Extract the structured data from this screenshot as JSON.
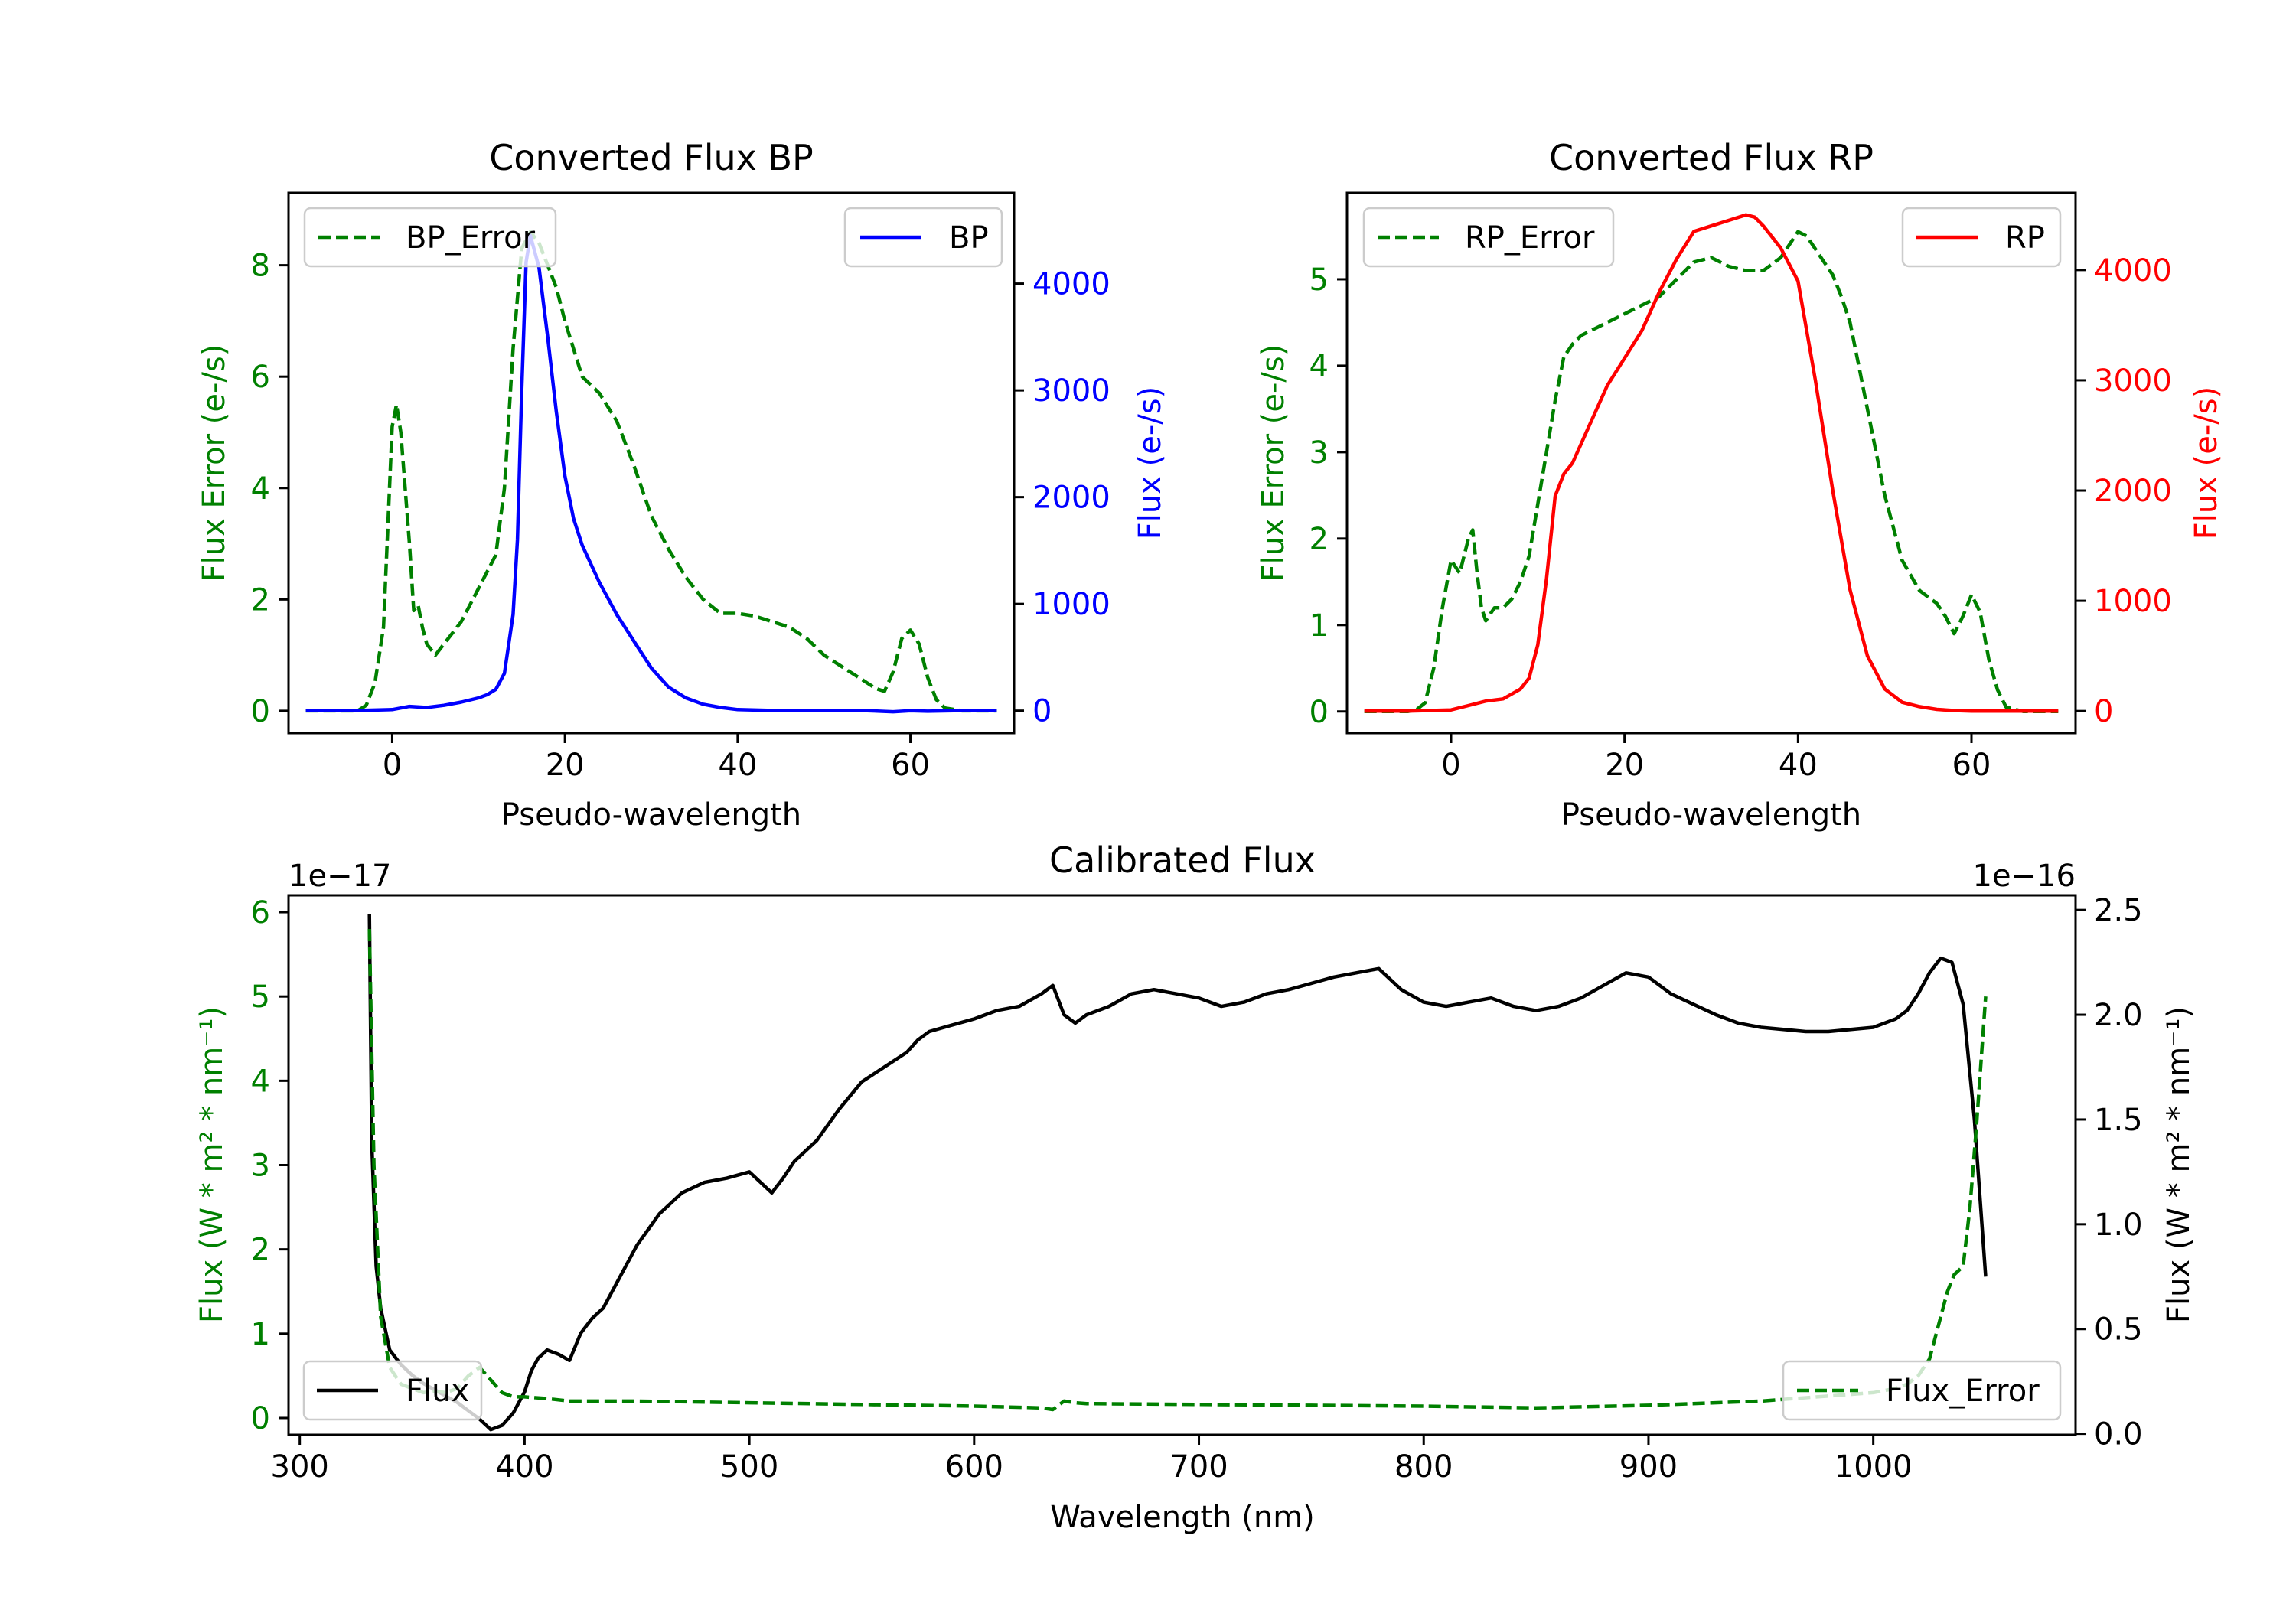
{
  "colors": {
    "green": "#008000",
    "blue": "#0000ff",
    "red": "#ff0000",
    "black": "#000000"
  },
  "chart_data": [
    {
      "type": "line",
      "title": "Converted Flux BP",
      "xlabel": "Pseudo-wavelength",
      "ylabel_left": "Flux Error (e-/s)",
      "ylabel_right": "Flux (e-/s)",
      "xlim": [
        -12,
        72
      ],
      "ylim_left": [
        -0.4,
        9.3
      ],
      "ylim_right": [
        -210,
        4850
      ],
      "xticks": [
        "0",
        "20",
        "40",
        "60"
      ],
      "yticks_left": [
        "0",
        "2",
        "4",
        "6",
        "8"
      ],
      "yticks_right": [
        "0",
        "1000",
        "2000",
        "3000",
        "4000"
      ],
      "legend_left": "BP_Error",
      "legend_right": "BP",
      "series": [
        {
          "name": "BP_Error",
          "axis": "left",
          "style": "dashed",
          "color": "green",
          "x": [
            -10,
            -4,
            -3,
            -2,
            -1,
            0,
            0.5,
            1,
            2,
            2.5,
            3,
            3.5,
            4,
            5,
            6,
            7,
            8,
            9,
            10,
            12,
            13,
            14,
            15,
            16,
            17,
            18,
            19,
            20,
            22,
            24,
            26,
            28,
            30,
            32,
            34,
            36,
            38,
            40,
            42,
            44,
            46,
            48,
            50,
            52,
            54,
            56,
            57,
            58,
            59,
            60,
            61,
            62,
            63,
            64,
            66,
            68,
            70
          ],
          "y": [
            0,
            0,
            0.1,
            0.5,
            1.5,
            5.1,
            5.5,
            5.0,
            3.0,
            1.8,
            1.9,
            1.5,
            1.2,
            1.0,
            1.2,
            1.4,
            1.6,
            1.9,
            2.2,
            2.8,
            4.0,
            6.5,
            8.3,
            8.6,
            8.4,
            8.0,
            7.6,
            7.0,
            6.0,
            5.7,
            5.2,
            4.4,
            3.5,
            2.9,
            2.4,
            2.0,
            1.75,
            1.75,
            1.7,
            1.6,
            1.5,
            1.3,
            1.0,
            0.8,
            0.6,
            0.4,
            0.35,
            0.7,
            1.3,
            1.45,
            1.2,
            0.6,
            0.2,
            0.05,
            0,
            0,
            0
          ]
        },
        {
          "name": "BP",
          "axis": "right",
          "style": "solid",
          "color": "blue",
          "x": [
            -10,
            -5,
            0,
            2,
            4,
            6,
            8,
            10,
            11,
            12,
            13,
            14,
            14.5,
            15,
            15.5,
            16,
            17,
            18,
            19,
            20,
            21,
            22,
            24,
            26,
            28,
            30,
            32,
            34,
            36,
            38,
            40,
            45,
            50,
            55,
            58,
            60,
            62,
            65,
            70
          ],
          "y": [
            0,
            0,
            10,
            40,
            30,
            50,
            80,
            120,
            150,
            200,
            350,
            900,
            1600,
            3000,
            4200,
            4450,
            4150,
            3500,
            2800,
            2200,
            1800,
            1550,
            1200,
            900,
            650,
            400,
            220,
            120,
            60,
            30,
            10,
            0,
            0,
            0,
            -10,
            0,
            -5,
            0,
            0
          ]
        }
      ]
    },
    {
      "type": "line",
      "title": "Converted Flux RP",
      "xlabel": "Pseudo-wavelength",
      "ylabel_left": "Flux Error (e-/s)",
      "ylabel_right": "Flux (e-/s)",
      "xlim": [
        -12,
        72
      ],
      "ylim_left": [
        -0.25,
        6.0
      ],
      "ylim_right": [
        -200,
        4700
      ],
      "xticks": [
        "0",
        "20",
        "40",
        "60"
      ],
      "yticks_left": [
        "0",
        "1",
        "2",
        "3",
        "4",
        "5"
      ],
      "yticks_right": [
        "0",
        "1000",
        "2000",
        "3000",
        "4000"
      ],
      "legend_left": "RP_Error",
      "legend_right": "RP",
      "series": [
        {
          "name": "RP_Error",
          "axis": "left",
          "style": "dashed",
          "color": "green",
          "x": [
            -10,
            -5,
            -4,
            -3,
            -2,
            -1,
            0,
            1,
            2,
            2.5,
            3,
            3.5,
            4,
            5,
            6,
            7,
            8,
            9,
            10,
            11,
            12,
            13,
            14,
            15,
            16,
            18,
            20,
            22,
            24,
            26,
            28,
            30,
            32,
            34,
            36,
            38,
            39,
            40,
            41,
            42,
            43,
            44,
            45,
            46,
            47,
            48,
            50,
            52,
            54,
            56,
            57,
            58,
            59,
            60,
            61,
            62,
            63,
            64,
            66,
            68,
            70
          ],
          "y": [
            0,
            0,
            0.02,
            0.1,
            0.5,
            1.2,
            1.75,
            1.6,
            2.0,
            2.1,
            1.6,
            1.2,
            1.05,
            1.2,
            1.2,
            1.3,
            1.5,
            1.8,
            2.4,
            3.0,
            3.6,
            4.1,
            4.25,
            4.35,
            4.4,
            4.5,
            4.6,
            4.7,
            4.8,
            5.0,
            5.2,
            5.25,
            5.15,
            5.1,
            5.1,
            5.25,
            5.4,
            5.55,
            5.5,
            5.35,
            5.2,
            5.05,
            4.8,
            4.5,
            4.0,
            3.5,
            2.5,
            1.75,
            1.4,
            1.25,
            1.1,
            0.9,
            1.1,
            1.35,
            1.15,
            0.6,
            0.25,
            0.05,
            0,
            0,
            0
          ]
        },
        {
          "name": "RP",
          "axis": "right",
          "style": "solid",
          "color": "red",
          "x": [
            -10,
            -5,
            0,
            2,
            4,
            6,
            8,
            9,
            10,
            11,
            12,
            13,
            14,
            16,
            18,
            20,
            22,
            24,
            26,
            28,
            30,
            32,
            34,
            35,
            36,
            38,
            40,
            42,
            44,
            46,
            48,
            50,
            52,
            54,
            56,
            58,
            60,
            62,
            65,
            70
          ],
          "y": [
            0,
            0,
            10,
            50,
            90,
            110,
            200,
            300,
            600,
            1200,
            1950,
            2150,
            2250,
            2600,
            2950,
            3200,
            3450,
            3800,
            4100,
            4350,
            4400,
            4450,
            4500,
            4480,
            4400,
            4200,
            3900,
            3000,
            2000,
            1100,
            500,
            200,
            80,
            40,
            15,
            5,
            0,
            0,
            0,
            0
          ]
        }
      ]
    },
    {
      "type": "line",
      "title": "Calibrated Flux",
      "xlabel": "Wavelength (nm)",
      "ylabel_left": "Flux (W * m² * nm⁻¹)",
      "ylabel_right": "Flux (W * m² * nm⁻¹)",
      "offset_left": "1e−17",
      "offset_right": "1e−16",
      "xlim": [
        295,
        1090
      ],
      "ylim_left": [
        -0.2,
        6.2
      ],
      "ylim_right": [
        -0.005,
        2.57
      ],
      "xticks": [
        "300",
        "400",
        "500",
        "600",
        "700",
        "800",
        "900",
        "1000"
      ],
      "yticks_left": [
        "0",
        "1",
        "2",
        "3",
        "4",
        "5",
        "6"
      ],
      "yticks_right": [
        "0.0",
        "0.5",
        "1.0",
        "1.5",
        "2.0",
        "2.5"
      ],
      "legend_left": "Flux",
      "legend_right": "Flux_Error",
      "series": [
        {
          "name": "Flux",
          "axis": "right",
          "style": "solid",
          "color": "black",
          "x": [
            331,
            332,
            334,
            336,
            338,
            340,
            345,
            350,
            355,
            360,
            365,
            370,
            375,
            380,
            385,
            390,
            395,
            400,
            403,
            406,
            410,
            415,
            420,
            425,
            430,
            435,
            440,
            445,
            450,
            460,
            465,
            470,
            480,
            490,
            500,
            507,
            510,
            515,
            520,
            530,
            540,
            550,
            560,
            570,
            575,
            580,
            590,
            600,
            610,
            620,
            630,
            635,
            640,
            645,
            650,
            660,
            670,
            680,
            690,
            700,
            710,
            720,
            730,
            740,
            750,
            760,
            770,
            780,
            790,
            800,
            810,
            820,
            830,
            840,
            850,
            860,
            870,
            880,
            890,
            900,
            910,
            920,
            930,
            940,
            950,
            960,
            970,
            980,
            990,
            1000,
            1005,
            1010,
            1015,
            1020,
            1025,
            1030,
            1035,
            1040,
            1045,
            1050
          ],
          "y": [
            2.48,
            1.4,
            0.8,
            0.6,
            0.5,
            0.4,
            0.33,
            0.28,
            0.24,
            0.21,
            0.18,
            0.15,
            0.11,
            0.07,
            0.02,
            0.04,
            0.1,
            0.2,
            0.3,
            0.36,
            0.4,
            0.38,
            0.35,
            0.48,
            0.55,
            0.6,
            0.7,
            0.8,
            0.9,
            1.05,
            1.1,
            1.15,
            1.2,
            1.22,
            1.25,
            1.18,
            1.15,
            1.22,
            1.3,
            1.4,
            1.55,
            1.68,
            1.75,
            1.82,
            1.88,
            1.92,
            1.95,
            1.98,
            2.02,
            2.04,
            2.1,
            2.14,
            2.0,
            1.96,
            2.0,
            2.04,
            2.1,
            2.12,
            2.1,
            2.08,
            2.04,
            2.06,
            2.1,
            2.12,
            2.15,
            2.18,
            2.2,
            2.22,
            2.12,
            2.06,
            2.04,
            2.06,
            2.08,
            2.04,
            2.02,
            2.04,
            2.08,
            2.14,
            2.2,
            2.18,
            2.1,
            2.05,
            2.0,
            1.96,
            1.94,
            1.93,
            1.92,
            1.92,
            1.93,
            1.94,
            1.96,
            1.98,
            2.02,
            2.1,
            2.2,
            2.27,
            2.25,
            2.05,
            1.5,
            0.75
          ]
        },
        {
          "name": "Flux_Error",
          "axis": "left",
          "style": "dashed",
          "color": "green",
          "x": [
            331,
            333,
            336,
            340,
            345,
            350,
            355,
            360,
            365,
            370,
            375,
            380,
            385,
            390,
            395,
            400,
            410,
            420,
            450,
            500,
            550,
            600,
            630,
            635,
            640,
            645,
            650,
            700,
            750,
            800,
            850,
            900,
            950,
            1000,
            1010,
            1015,
            1020,
            1025,
            1030,
            1033,
            1036,
            1040,
            1043,
            1046,
            1050
          ],
          "y": [
            5.8,
            3.0,
            1.2,
            0.6,
            0.4,
            0.35,
            0.3,
            0.32,
            0.3,
            0.35,
            0.5,
            0.6,
            0.45,
            0.3,
            0.25,
            0.25,
            0.23,
            0.2,
            0.2,
            0.18,
            0.16,
            0.14,
            0.12,
            0.1,
            0.2,
            0.18,
            0.17,
            0.16,
            0.15,
            0.14,
            0.12,
            0.15,
            0.2,
            0.3,
            0.35,
            0.4,
            0.5,
            0.7,
            1.2,
            1.5,
            1.7,
            1.8,
            2.5,
            3.5,
            5.0
          ]
        }
      ]
    }
  ]
}
